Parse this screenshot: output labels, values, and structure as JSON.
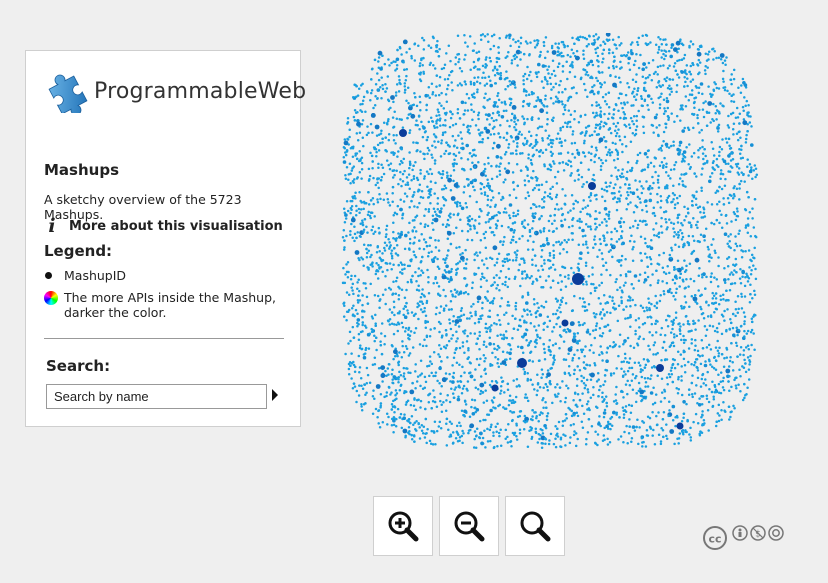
{
  "brand": {
    "name": "ProgrammableWeb",
    "logo_icon": "puzzle-piece-icon"
  },
  "panel": {
    "title": "Mashups",
    "description": "A sketchy overview of the 5723 Mashups.",
    "more_link": "More about this visualisation",
    "more_icon": "info-icon",
    "legend_title": "Legend:",
    "legend": [
      {
        "icon": "black-dot-icon",
        "label": "MashupID"
      },
      {
        "icon": "color-wheel-icon",
        "label": "The more APIs inside the Mashup, darker the color."
      }
    ],
    "search_title": "Search:",
    "search_placeholder": "Search by name"
  },
  "visualization": {
    "node_count": 5723,
    "base_color": "#1aa0e0",
    "dark_color": "#0a3c9a"
  },
  "zoom_controls": [
    {
      "name": "zoom-in-button",
      "icon": "zoom-in-icon"
    },
    {
      "name": "zoom-out-button",
      "icon": "zoom-out-icon"
    },
    {
      "name": "zoom-reset-button",
      "icon": "search-icon"
    }
  ],
  "license": {
    "icon": "creative-commons-by-nc-sa-icon"
  }
}
